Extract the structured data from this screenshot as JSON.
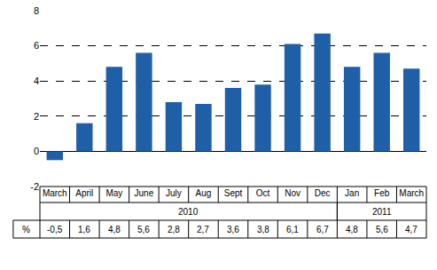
{
  "chart_data": {
    "type": "bar",
    "categories": [
      "March",
      "April",
      "May",
      "June",
      "July",
      "Aug",
      "Sept",
      "Oct",
      "Nov",
      "Dec",
      "Jan",
      "Feb",
      "March"
    ],
    "values": [
      -0.5,
      1.6,
      4.8,
      5.6,
      2.8,
      2.7,
      3.6,
      3.8,
      6.1,
      6.7,
      4.8,
      5.6,
      4.7
    ],
    "value_labels": [
      "-0,5",
      "1,6",
      "4,8",
      "5,6",
      "2,8",
      "2,7",
      "3,6",
      "3,8",
      "6,1",
      "6,7",
      "4,8",
      "5,6",
      "4,7"
    ],
    "row_label": "%",
    "groups": [
      {
        "label": "2010",
        "start": 0,
        "end": 9
      },
      {
        "label": "2011",
        "start": 10,
        "end": 12
      }
    ],
    "color": "#1f5fa7",
    "ylim": [
      -2,
      8
    ],
    "yticks": [
      -2,
      0,
      2,
      4,
      6,
      8
    ],
    "grid": true
  }
}
